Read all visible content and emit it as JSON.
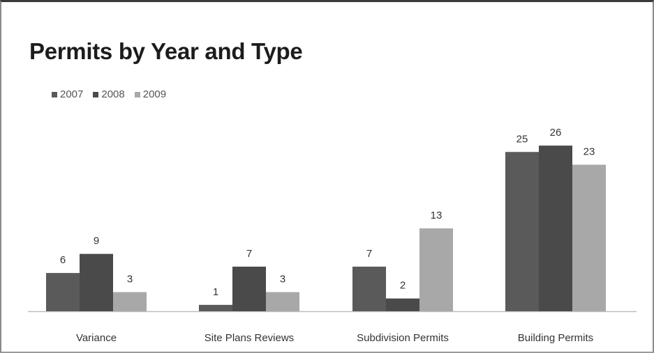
{
  "chart_data": {
    "type": "bar",
    "title": "Permits by Year and Type",
    "categories": [
      "Variance",
      "Site Plans Reviews",
      "Subdivision Permits",
      "Building Permits"
    ],
    "series": [
      {
        "name": "2007",
        "color": "#5a5a5a",
        "values": [
          6,
          1,
          7,
          25
        ]
      },
      {
        "name": "2008",
        "color": "#4a4a4a",
        "values": [
          9,
          7,
          2,
          26
        ]
      },
      {
        "name": "2009",
        "color": "#a8a8a8",
        "values": [
          3,
          3,
          13,
          23
        ]
      }
    ],
    "legend_position": "top-left",
    "grid": false,
    "ylim": [
      0,
      26
    ]
  }
}
